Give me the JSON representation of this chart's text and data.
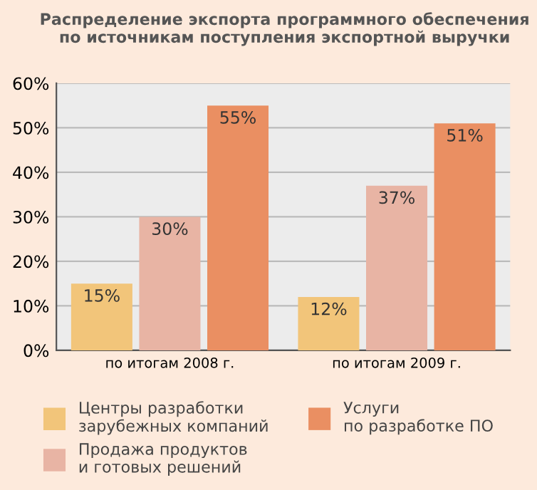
{
  "chart_data": {
    "type": "bar",
    "title": "Распределение экспорта программного обеспечения\nпо источникам поступления экспортной выручки",
    "categories": [
      "по итогам 2008 г.",
      "по итогам 2009 г."
    ],
    "series": [
      {
        "name": "Центры разработки\nзарубежных компаний",
        "color": "#f2c57a",
        "values": [
          15,
          12
        ],
        "value_labels": [
          "15%",
          "12%"
        ]
      },
      {
        "name": "Продажа продуктов\nи готовых решений",
        "color": "#e8b4a4",
        "values": [
          30,
          37
        ],
        "value_labels": [
          "30%",
          "37%"
        ]
      },
      {
        "name": "Услуги\nпо разработке ПО",
        "color": "#ea8f62",
        "values": [
          55,
          51
        ],
        "value_labels": [
          "55%",
          "51%"
        ]
      }
    ],
    "ylim": [
      0,
      60
    ],
    "yticks": [
      {
        "value": 0,
        "label": "0%"
      },
      {
        "value": 10,
        "label": "10%"
      },
      {
        "value": 20,
        "label": "20%"
      },
      {
        "value": 30,
        "label": "30%"
      },
      {
        "value": 40,
        "label": "40%"
      },
      {
        "value": 50,
        "label": "50%"
      },
      {
        "value": 60,
        "label": "60%"
      }
    ],
    "grid": "y",
    "legend": "bottom"
  }
}
